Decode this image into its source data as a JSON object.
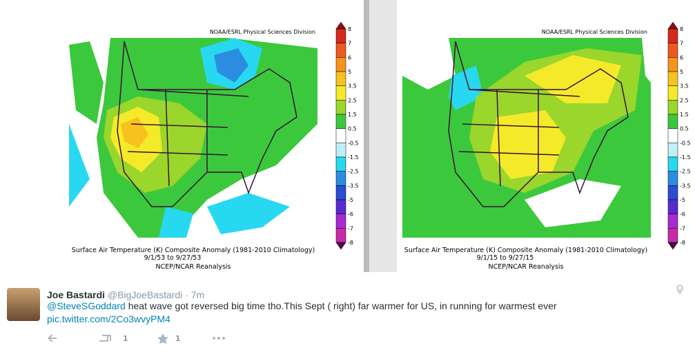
{
  "maps": [
    {
      "credit": "NOAA/ESRL Physical Sciences Division",
      "caption": "Surface Air Temperature (K) Composite Anomaly (1981-2010 Climatology)",
      "dates": "9/1/53   to 9/27/53",
      "source": "NCEP/NCAR Reanalysis"
    },
    {
      "credit": "NOAA/ESRL Physical Sciences Division",
      "caption": "Surface Air Temperature (K) Composite Anomaly (1981-2010 Climatology)",
      "dates": "9/1/15   to 9/27/15",
      "source": "NCEP/NCAR Reanalysis"
    }
  ],
  "colorbar": {
    "labels": [
      "8",
      "7",
      "6",
      "5",
      "3.5",
      "2.5",
      "1.5",
      "0.5",
      "-0.5",
      "-1.5",
      "-2.5",
      "-3.5",
      "-5",
      "-6",
      "-7",
      "-8"
    ],
    "colors": [
      "#8b1010",
      "#d42a1e",
      "#ec5a1e",
      "#f4931e",
      "#f7c21e",
      "#f4ea2a",
      "#9ad62c",
      "#3cc83c",
      "#ffffff",
      "#bff0f8",
      "#28d8f0",
      "#2a8de0",
      "#2a4cd0",
      "#5a2ad0",
      "#a82ad0",
      "#c82aa8",
      "#4a0a4a"
    ]
  },
  "tweet": {
    "name": "Joe Bastardi",
    "handle": "@BigJoeBastardi",
    "time": "· 7m",
    "mention": "@SteveSGoddard",
    "text": " heat wave got reversed big time tho.This Sept ( right) far warmer for US, in running for warmest ever",
    "link": "pic.twitter.com/2Co3wvyPM4",
    "retweets": "1",
    "favorites": "1"
  }
}
